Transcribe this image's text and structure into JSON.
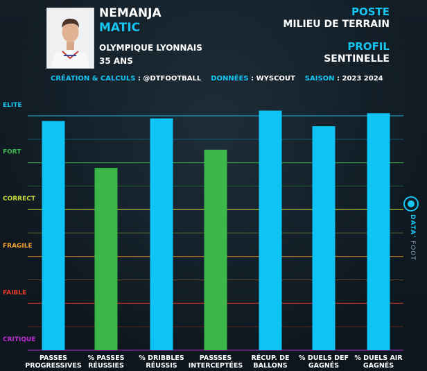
{
  "player": {
    "first_name": "NEMANJA",
    "last_name": "MATIC",
    "club": "OLYMPIQUE LYONNAIS",
    "age": "35 ANS"
  },
  "position": {
    "label": "POSTE",
    "value": "MILIEU DE TERRAIN"
  },
  "profile": {
    "label": "PROFIL",
    "value": "SENTINELLE"
  },
  "credits": {
    "creation_label": "CRÉATION & CALCULS",
    "creation_value": ": @DTFOOTBALL",
    "data_label": "DONNÉES",
    "data_value": ": WYSCOUT",
    "season_label": "SAISON",
    "season_value": ": 2023 2024"
  },
  "brand": {
    "name": "DATA'",
    "sub": "FOOT"
  },
  "colors": {
    "accent": "#16c4f0",
    "bar_blue": "#0fc4f5",
    "bar_green": "#3cb54a",
    "background": "#101a22"
  },
  "chart_data": {
    "type": "bar",
    "levels": [
      {
        "name": "ELITE",
        "value": 90,
        "color": "#16c4f0"
      },
      {
        "name": "FORT",
        "value": 72,
        "color": "#3cb54a"
      },
      {
        "name": "CORRECT",
        "value": 54,
        "color": "#c8d93c"
      },
      {
        "name": "FRAGILE",
        "value": 36,
        "color": "#f0a030"
      },
      {
        "name": "FAIBLE",
        "value": 18,
        "color": "#e43a2c"
      },
      {
        "name": "CRITIQUE",
        "value": 0,
        "color": "#c02bd6"
      }
    ],
    "ylim": [
      0,
      100
    ],
    "categories": [
      [
        "PASSES",
        "PROGRESSIVES"
      ],
      [
        "% PASSES",
        "RÉUSSIES"
      ],
      [
        "% DRIBBLES",
        "RÉUSSIS"
      ],
      [
        "PASSSES",
        "INTERCEPTÉES"
      ],
      [
        "RÉCUP. DE",
        "BALLONS"
      ],
      [
        "% DUELS DEF",
        "GAGNÉS"
      ],
      [
        "% DUELS AIR",
        "GAGNÉS"
      ]
    ],
    "values": [
      88,
      70,
      89,
      77,
      92,
      86,
      91
    ],
    "bar_colors": [
      "#0fc4f5",
      "#3cb54a",
      "#0fc4f5",
      "#3cb54a",
      "#0fc4f5",
      "#0fc4f5",
      "#0fc4f5"
    ]
  }
}
